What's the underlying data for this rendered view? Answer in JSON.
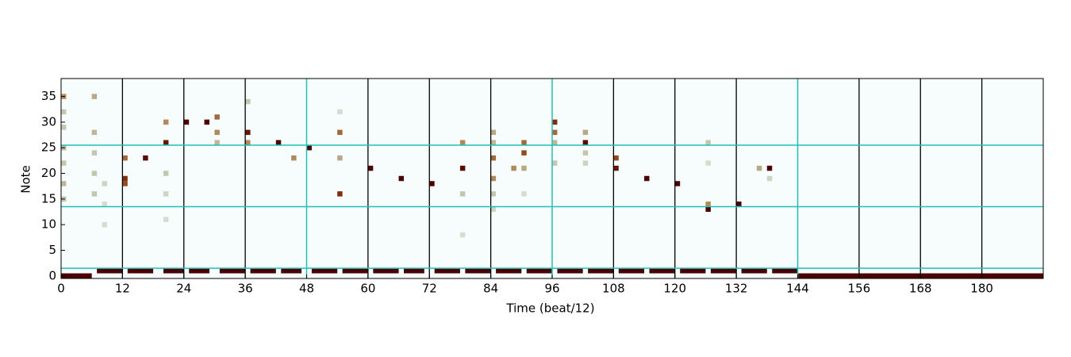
{
  "chart_data": {
    "type": "heatmap",
    "x_label": "Time (beat/12)",
    "y_label": "Note",
    "xlim": [
      0,
      192
    ],
    "ylim": [
      -0.5,
      38.5
    ],
    "xticks": [
      0,
      12,
      24,
      36,
      48,
      60,
      72,
      84,
      96,
      108,
      120,
      132,
      144,
      156,
      168,
      180
    ],
    "yticks": [
      0,
      5,
      10,
      15,
      20,
      25,
      30,
      35
    ],
    "colormap": [
      "#f7fcfd",
      "#c9d6c2",
      "#b08a5a",
      "#8c3a10",
      "#4d0000"
    ],
    "beat_lines": {
      "color": "#000000",
      "x": [
        12,
        24,
        36,
        60,
        72,
        84,
        108,
        120,
        132,
        156,
        168,
        180
      ]
    },
    "section_lines": {
      "color": "#20c0b8",
      "x": [
        48,
        96,
        144
      ],
      "y": [
        1.5,
        13.5,
        25.5
      ]
    },
    "cells": {
      "x": [
        12,
        12,
        12,
        16,
        20,
        20,
        24,
        28,
        30,
        30,
        36,
        36,
        42,
        45,
        48,
        54,
        54,
        54,
        60,
        66,
        72,
        78,
        78,
        84,
        84,
        90,
        90,
        88,
        96,
        96,
        102,
        102,
        108,
        108,
        114,
        120,
        126,
        126,
        132,
        138,
        136,
        0,
        0,
        0,
        0,
        0,
        0,
        0,
        6,
        6,
        6,
        6,
        6,
        8,
        8,
        8,
        20,
        20,
        20,
        30,
        36,
        54,
        78,
        78,
        84,
        84,
        84,
        84,
        90,
        90,
        96,
        96,
        102,
        102,
        126,
        126,
        138
      ],
      "y": [
        19,
        18,
        23,
        23,
        26,
        30,
        30,
        30,
        31,
        28,
        28,
        26,
        26,
        23,
        25,
        16,
        28,
        23,
        21,
        19,
        18,
        21,
        26,
        23,
        19,
        26,
        24,
        21,
        30,
        28,
        26,
        28,
        21,
        23,
        19,
        18,
        13,
        14,
        14,
        21,
        21,
        35,
        32,
        29,
        25,
        22,
        18,
        15,
        35,
        28,
        24,
        20,
        16,
        18,
        14,
        10,
        20,
        16,
        11,
        26,
        34,
        32,
        16,
        8,
        28,
        26,
        16,
        13,
        21,
        16,
        26,
        22,
        24,
        22,
        26,
        22,
        19
      ],
      "values": [
        0.8,
        0.7,
        0.6,
        0.95,
        0.9,
        0.5,
        1,
        1,
        0.6,
        0.5,
        0.9,
        0.5,
        1,
        0.5,
        1,
        0.8,
        0.6,
        0.4,
        1,
        1,
        1,
        0.95,
        0.5,
        0.6,
        0.5,
        0.6,
        0.7,
        0.5,
        0.8,
        0.6,
        0.95,
        0.4,
        0.9,
        0.7,
        1,
        1,
        1,
        0.5,
        1,
        1,
        0.4,
        0.5,
        0.3,
        0.3,
        0.35,
        0.3,
        0.35,
        0.3,
        0.4,
        0.35,
        0.3,
        0.3,
        0.3,
        0.25,
        0.2,
        0.2,
        0.3,
        0.25,
        0.2,
        0.35,
        0.3,
        0.2,
        0.3,
        0.2,
        0.4,
        0.35,
        0.3,
        0.25,
        0.4,
        0.2,
        0.35,
        0.3,
        0.3,
        0.25,
        0.3,
        0.2,
        0.25
      ]
    },
    "segments": {
      "start": [
        0,
        144,
        7,
        13,
        20,
        25,
        31,
        37,
        43,
        49,
        55,
        61,
        67,
        73,
        79,
        85,
        91,
        97,
        103,
        109,
        115,
        121,
        127,
        133,
        139
      ],
      "end": [
        6,
        192,
        12,
        18,
        24,
        29,
        36,
        42,
        47,
        54,
        60,
        66,
        71,
        78,
        84,
        90,
        96,
        102,
        108,
        114,
        120,
        126,
        132,
        138,
        144
      ],
      "note": [
        0,
        0,
        1,
        1,
        1,
        1,
        1,
        1,
        1,
        1,
        1,
        1,
        1,
        1,
        1,
        1,
        1,
        1,
        1,
        1,
        1,
        1,
        1,
        1,
        1
      ],
      "values": [
        1,
        1,
        1,
        1,
        1,
        1,
        1,
        1,
        1,
        1,
        1,
        1,
        1,
        1,
        1,
        1,
        1,
        1,
        1,
        1,
        1,
        1,
        1,
        1,
        1
      ]
    }
  }
}
